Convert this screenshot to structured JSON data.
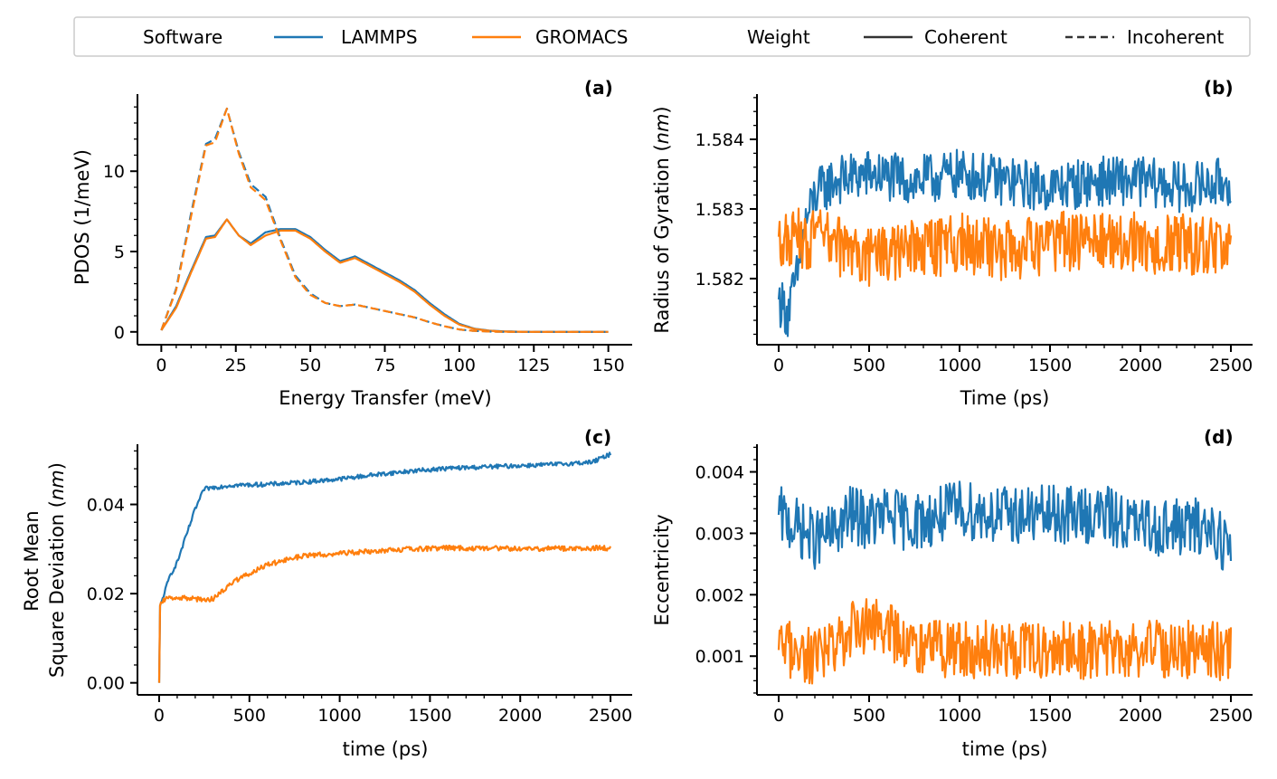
{
  "legend": {
    "software_title": "Software",
    "weight_title": "Weight",
    "entries": [
      {
        "label": "LAMMPS",
        "color": "#1f77b4",
        "dash": "solid"
      },
      {
        "label": "GROMACS",
        "color": "#ff7f0e",
        "dash": "solid"
      },
      {
        "label": "Coherent",
        "color": "#333333",
        "dash": "solid"
      },
      {
        "label": "Incoherent",
        "color": "#333333",
        "dash": "dashed"
      }
    ]
  },
  "colors": {
    "lammps": "#1f77b4",
    "gromacs": "#ff7f0e"
  },
  "chart_data": [
    {
      "panel": "(a)",
      "type": "line",
      "xlabel": "Energy Transfer (meV)",
      "ylabel": "PDOS (1/meV)",
      "xlim": [
        -8,
        158
      ],
      "ylim": [
        -0.8,
        14.8
      ],
      "xticks": [
        0,
        25,
        50,
        75,
        100,
        125,
        150
      ],
      "yticks": [
        0,
        5,
        10
      ],
      "x": [
        0,
        5,
        10,
        15,
        18,
        22,
        26,
        30,
        35,
        40,
        45,
        50,
        55,
        60,
        65,
        70,
        75,
        80,
        85,
        90,
        95,
        100,
        105,
        110,
        115,
        120,
        125,
        130,
        135,
        140,
        145,
        150
      ],
      "series": [
        {
          "name": "LAMMPS",
          "weight": "Coherent",
          "values": [
            0.1,
            1.6,
            3.8,
            5.9,
            6.0,
            7.0,
            6.0,
            5.5,
            6.2,
            6.4,
            6.4,
            5.9,
            5.1,
            4.4,
            4.7,
            4.2,
            3.7,
            3.2,
            2.6,
            1.8,
            1.1,
            0.5,
            0.2,
            0.08,
            0.03,
            0.01,
            0.0,
            0.0,
            0.0,
            0.0,
            0.0,
            0.0
          ]
        },
        {
          "name": "GROMACS",
          "weight": "Coherent",
          "values": [
            0.1,
            1.5,
            3.7,
            5.8,
            5.9,
            7.0,
            6.0,
            5.4,
            6.0,
            6.3,
            6.3,
            5.8,
            5.0,
            4.3,
            4.6,
            4.1,
            3.6,
            3.1,
            2.5,
            1.7,
            1.0,
            0.45,
            0.18,
            0.07,
            0.02,
            0.01,
            0.0,
            0.0,
            0.0,
            0.0,
            0.0,
            0.0
          ]
        },
        {
          "name": "LAMMPS",
          "weight": "Incoherent",
          "values": [
            0.1,
            2.7,
            7.4,
            11.7,
            12.0,
            13.9,
            11.2,
            9.2,
            8.4,
            5.8,
            3.5,
            2.4,
            1.8,
            1.6,
            1.7,
            1.5,
            1.3,
            1.1,
            0.9,
            0.6,
            0.35,
            0.15,
            0.06,
            0.02,
            0.0,
            0.0,
            0.0,
            0.0,
            0.0,
            0.0,
            0.0,
            0.0
          ]
        },
        {
          "name": "GROMACS",
          "weight": "Incoherent",
          "values": [
            0.1,
            2.6,
            7.2,
            11.6,
            11.8,
            13.9,
            11.1,
            9.0,
            8.2,
            5.7,
            3.4,
            2.3,
            1.8,
            1.6,
            1.7,
            1.5,
            1.3,
            1.1,
            0.9,
            0.6,
            0.35,
            0.15,
            0.06,
            0.02,
            0.0,
            0.0,
            0.0,
            0.0,
            0.0,
            0.0,
            0.0,
            0.0
          ]
        }
      ]
    },
    {
      "panel": "(b)",
      "type": "line",
      "xlabel": "Time (ps)",
      "ylabel": "Radius of Gyration (nm)",
      "xlim": [
        -120,
        2620
      ],
      "ylim": [
        1.58105,
        1.58465
      ],
      "xticks": [
        0,
        500,
        1000,
        1500,
        2000,
        2500
      ],
      "yticks": [
        1.582,
        1.583,
        1.584
      ],
      "x": [
        0,
        50,
        100,
        150,
        200,
        300,
        500,
        750,
        1000,
        1250,
        1500,
        1750,
        2000,
        2250,
        2500
      ],
      "series": [
        {
          "name": "LAMMPS",
          "values": [
            1.5817,
            1.5815,
            1.582,
            1.5828,
            1.5832,
            1.5834,
            1.5835,
            1.5834,
            1.5835,
            1.5834,
            1.5833,
            1.5834,
            1.5834,
            1.5833,
            1.5834
          ],
          "noise": 0.00045
        },
        {
          "name": "GROMACS",
          "values": [
            1.5826,
            1.5825,
            1.5826,
            1.5825,
            1.5826,
            1.5825,
            1.5823,
            1.5824,
            1.5825,
            1.5824,
            1.5825,
            1.5826,
            1.5825,
            1.5825,
            1.5824
          ],
          "noise": 0.00055
        }
      ]
    },
    {
      "panel": "(c)",
      "type": "line",
      "xlabel": "time (ps)",
      "ylabel_line1": "Root Mean",
      "ylabel_line2": "Square Deviation (nm)",
      "xlim": [
        -120,
        2620
      ],
      "ylim": [
        -0.0027,
        0.0535
      ],
      "xticks": [
        0,
        500,
        1000,
        1500,
        2000,
        2500
      ],
      "yticks": [
        0.0,
        0.02,
        0.04
      ],
      "yticklabels": [
        "0.00",
        "0.02",
        "0.04"
      ],
      "x": [
        0,
        5,
        20,
        60,
        100,
        150,
        200,
        250,
        300,
        400,
        600,
        800,
        1000,
        1200,
        1400,
        1600,
        1800,
        2000,
        2200,
        2400,
        2500
      ],
      "series": [
        {
          "name": "LAMMPS",
          "values": [
            0.0,
            0.017,
            0.019,
            0.024,
            0.027,
            0.033,
            0.039,
            0.0435,
            0.0438,
            0.0443,
            0.0445,
            0.045,
            0.0457,
            0.0467,
            0.0475,
            0.0481,
            0.0484,
            0.0487,
            0.049,
            0.0495,
            0.0513
          ],
          "noise": 0.0006
        },
        {
          "name": "GROMACS",
          "values": [
            0.0,
            0.017,
            0.0185,
            0.0193,
            0.019,
            0.019,
            0.0188,
            0.0186,
            0.0188,
            0.0225,
            0.0265,
            0.0285,
            0.029,
            0.0296,
            0.03,
            0.0302,
            0.0302,
            0.0301,
            0.0301,
            0.0302,
            0.0302
          ],
          "noise": 0.0007
        }
      ]
    },
    {
      "panel": "(d)",
      "type": "line",
      "xlabel": "time (ps)",
      "ylabel": "Eccentricity",
      "xlim": [
        -120,
        2620
      ],
      "ylim": [
        0.00037,
        0.00445
      ],
      "xticks": [
        0,
        500,
        1000,
        1500,
        2000,
        2500
      ],
      "yticks": [
        0.001,
        0.002,
        0.003,
        0.004
      ],
      "x": [
        0,
        100,
        200,
        300,
        400,
        500,
        600,
        700,
        800,
        1000,
        1200,
        1400,
        1600,
        1800,
        2000,
        2200,
        2400,
        2500
      ],
      "series": [
        {
          "name": "LAMMPS",
          "values": [
            0.0033,
            0.0031,
            0.0029,
            0.003,
            0.0033,
            0.0032,
            0.0033,
            0.0032,
            0.0032,
            0.0034,
            0.0033,
            0.0033,
            0.0033,
            0.0033,
            0.0031,
            0.0031,
            0.0031,
            0.0027
          ],
          "noise": 0.0006
        },
        {
          "name": "GROMACS",
          "values": [
            0.0011,
            0.0011,
            0.001,
            0.0011,
            0.0014,
            0.0015,
            0.0015,
            0.0011,
            0.0011,
            0.0011,
            0.0011,
            0.0011,
            0.0011,
            0.0011,
            0.0011,
            0.0011,
            0.0011,
            0.001
          ],
          "noise": 0.0006
        }
      ]
    }
  ]
}
